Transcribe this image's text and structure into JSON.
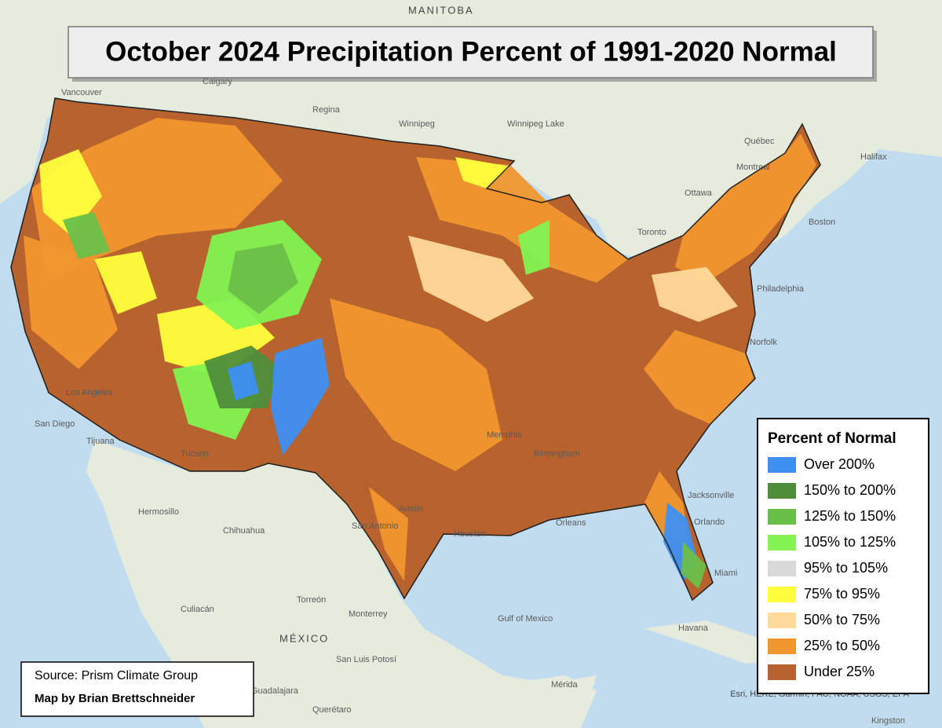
{
  "title": "October 2024 Precipitation Percent of 1991-2020 Normal",
  "legend": {
    "title": "Percent of Normal",
    "items": [
      {
        "label": "Over 200%",
        "color": "#3d8ff2"
      },
      {
        "label": "150% to 200%",
        "color": "#4e8e3a"
      },
      {
        "label": "125% to 150%",
        "color": "#6abf48"
      },
      {
        "label": "105% to 125%",
        "color": "#82f352"
      },
      {
        "label": "95% to 105%",
        "color": "#d9d9d9"
      },
      {
        "label": "75% to 95%",
        "color": "#ffff3c"
      },
      {
        "label": "50% to 75%",
        "color": "#ffd99a"
      },
      {
        "label": "25% to 50%",
        "color": "#f0962e"
      },
      {
        "label": "Under 25%",
        "color": "#b8622e"
      }
    ]
  },
  "source": "Source: Prism Climate Group",
  "credit": "Map by Brian Brettschneider",
  "attribution": "Esri, HERE, Garmin, FAO, NOAA, USGS, EPA",
  "map_labels": [
    "MANITOBA",
    "Calgary",
    "Regina",
    "Winnipeg",
    "Vancouver",
    "Québec",
    "Montreal",
    "Ottawa",
    "Toronto",
    "Halifax",
    "Boston",
    "Philadelphia",
    "Norfolk",
    "Jacksonville",
    "Orlando",
    "Miami",
    "Orleans",
    "Houston",
    "San Antonio",
    "Austin",
    "San Diego",
    "Tijuana",
    "Los Angeles",
    "Tucson",
    "Hermosillo",
    "Chihuahua",
    "Torreón",
    "Monterrey",
    "MÉXICO",
    "Culiacán",
    "San Luis Potosí",
    "Querétaro",
    "Guadalajara",
    "Mérida",
    "Havana",
    "Gulf of Mexico",
    "Kingston",
    "Winnipeg Lake",
    "Memphis",
    "Birmingham"
  ]
}
